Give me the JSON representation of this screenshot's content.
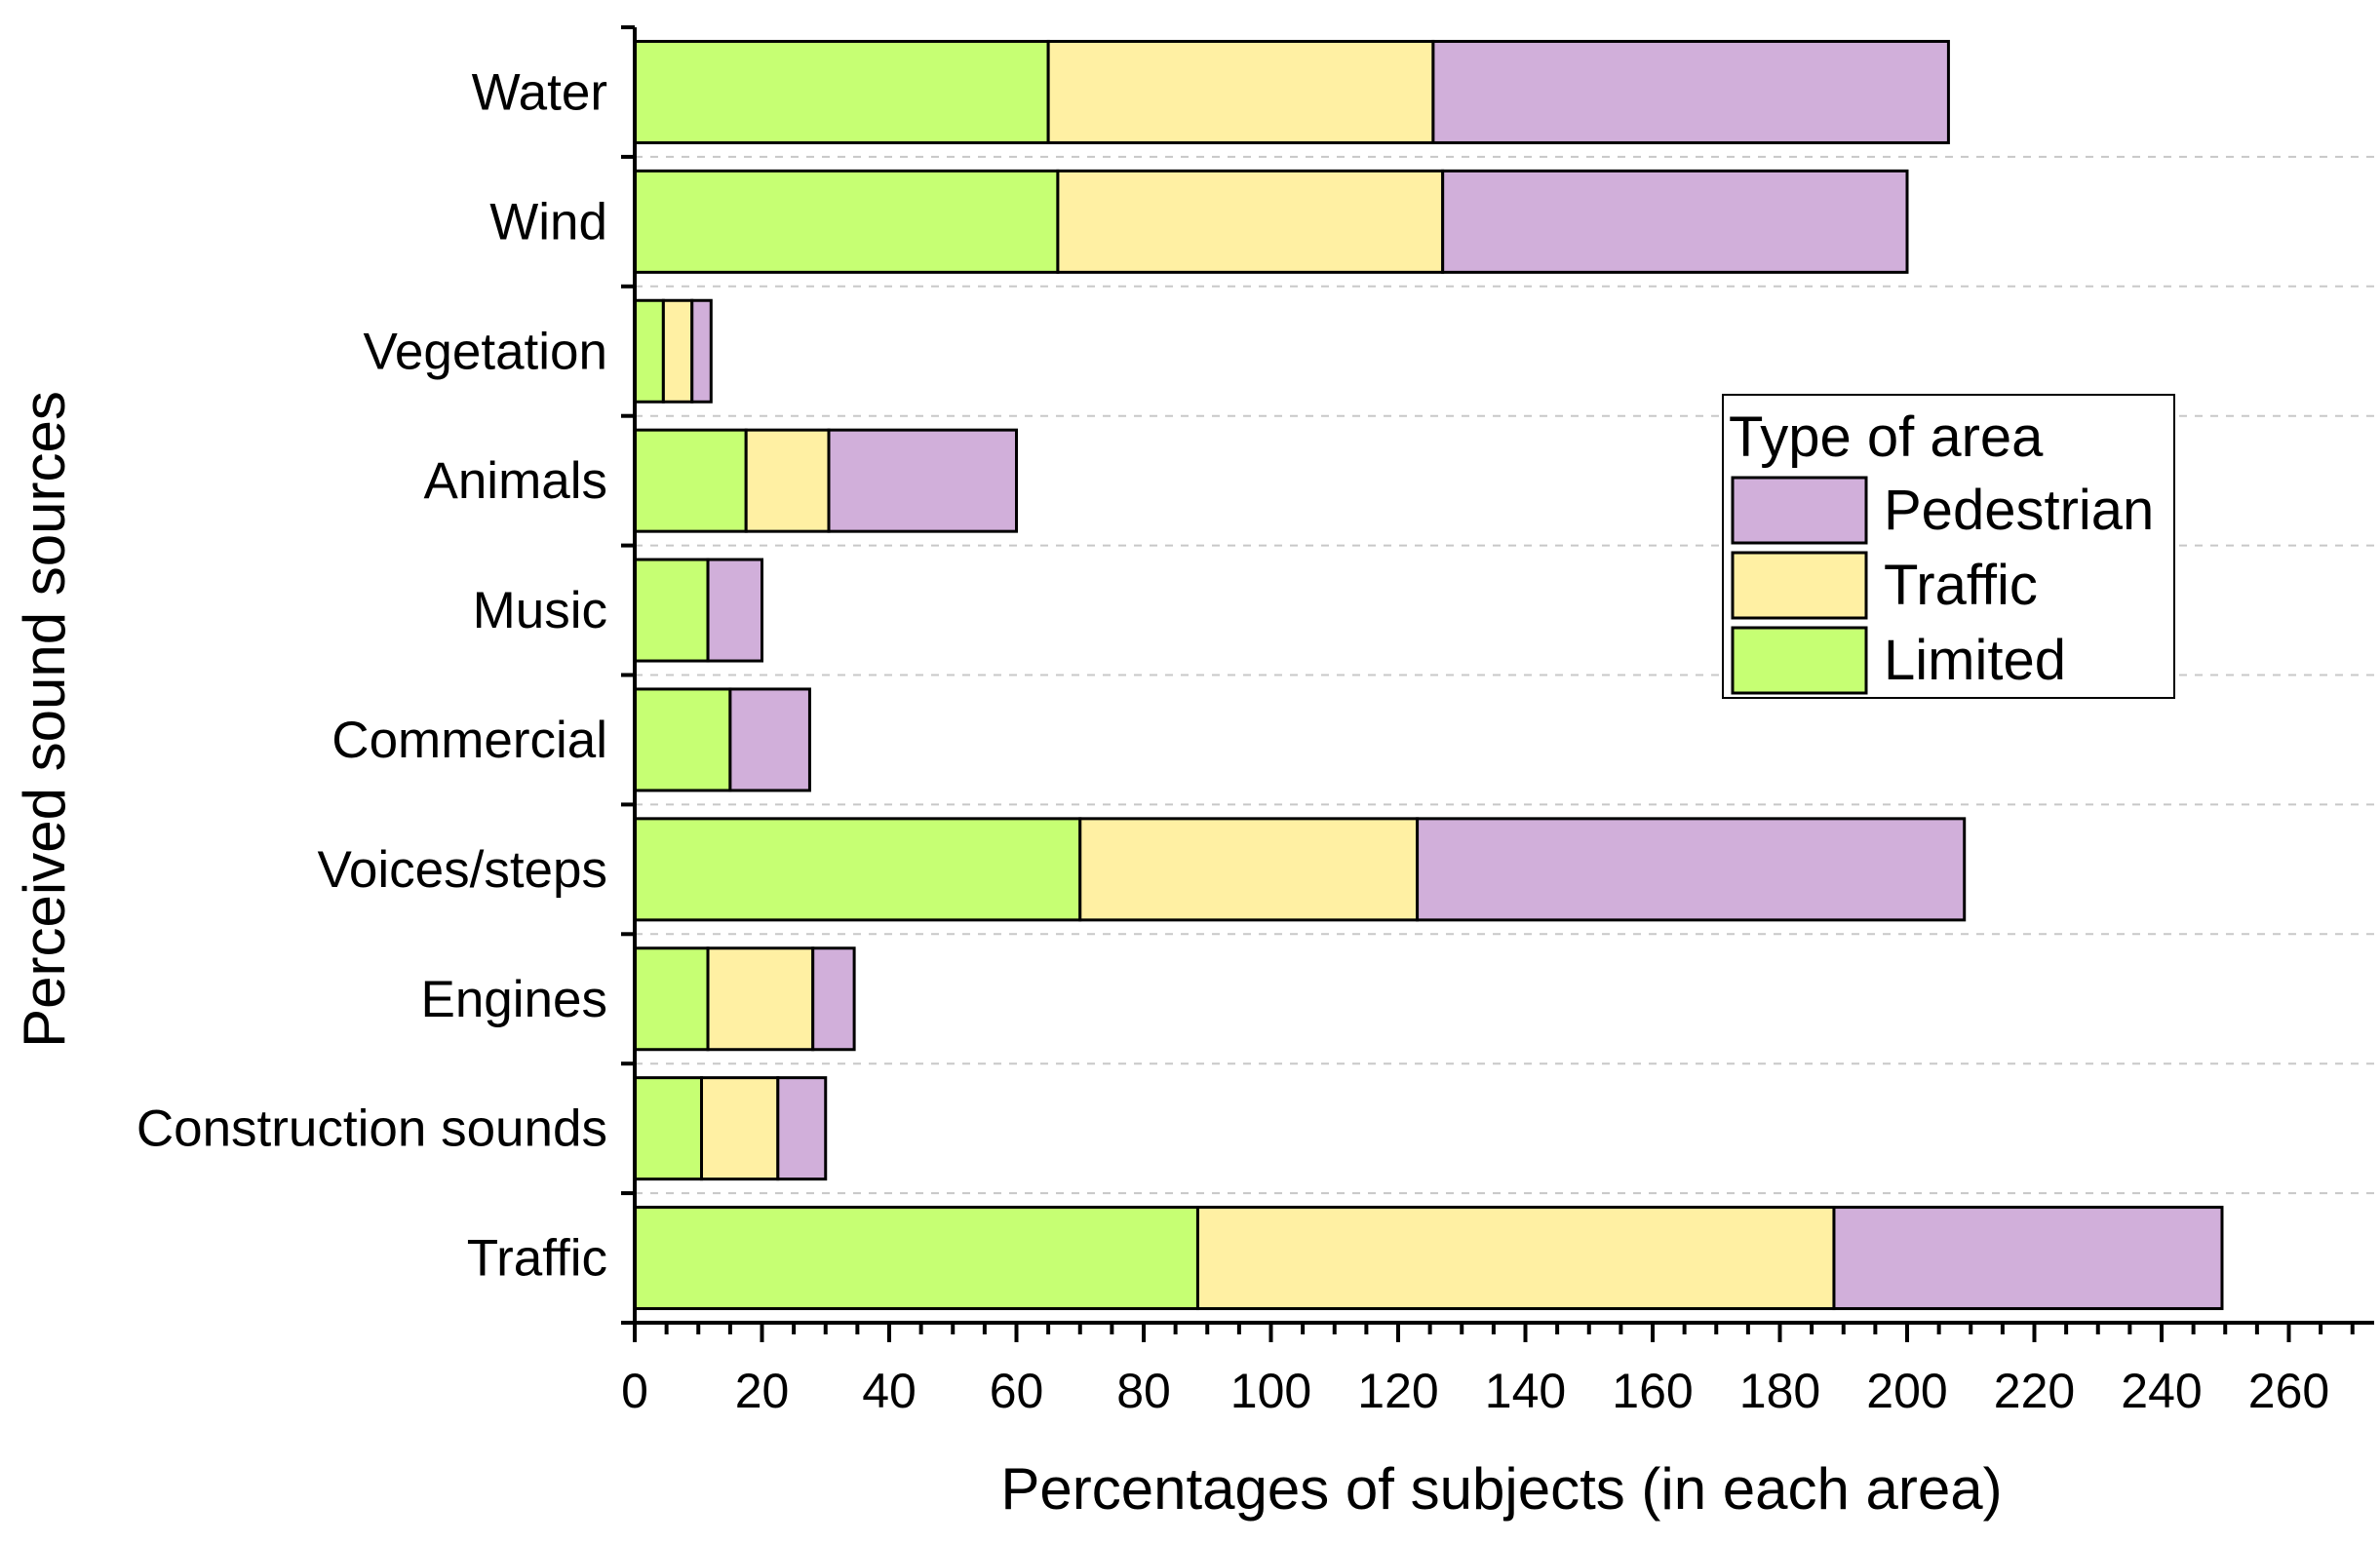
{
  "chart_data": {
    "type": "bar",
    "orientation": "horizontal",
    "stacked": true,
    "title": "",
    "xlabel": "Percentages of subjects (in each area)",
    "ylabel": "Perceived sound sources",
    "xlim": [
      0,
      272
    ],
    "xticks": [
      0,
      20,
      40,
      60,
      80,
      100,
      120,
      140,
      160,
      180,
      200,
      220,
      240,
      260
    ],
    "categories": [
      "Water",
      "Wind",
      "Vegetation",
      "Animals",
      "Music",
      "Commercial",
      "Voices/steps",
      "Engines",
      "Construction sounds",
      "Traffic"
    ],
    "series": [
      {
        "name": "Limited",
        "color": "#c6ff73",
        "values": [
          65,
          66.5,
          4.5,
          17.5,
          11.5,
          15,
          70,
          11.5,
          10.5,
          88.5
        ]
      },
      {
        "name": "Traffic",
        "color": "#fff0a3",
        "values": [
          60.5,
          60.5,
          4.5,
          13,
          0,
          0,
          53,
          16.5,
          12,
          100
        ]
      },
      {
        "name": "Pedestrian",
        "color": "#d1afda",
        "values": [
          81,
          73,
          3,
          29.5,
          8.5,
          12.5,
          86,
          6.5,
          7.5,
          61
        ]
      }
    ],
    "legend": {
      "title": "Type of area",
      "entries": [
        "Pedestrian",
        "Traffic",
        "Limited"
      ],
      "placement": "center-right"
    },
    "grid": "horizontal dashed"
  }
}
